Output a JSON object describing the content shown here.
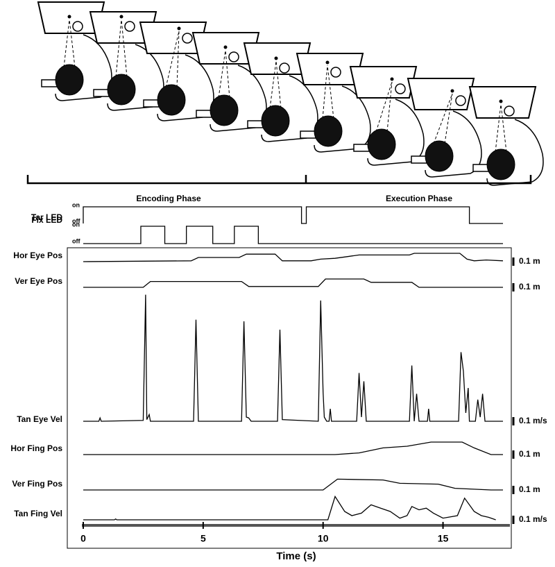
{
  "figure": {
    "phases": [
      {
        "label": "Encoding Phase"
      },
      {
        "label": "Execution Phase"
      }
    ],
    "leds": [
      {
        "name": "Fix LED",
        "on_label": "on",
        "off_label": "off",
        "x": [
          0,
          0,
          9.1,
          9.1,
          9.3,
          9.3,
          16.1,
          16.1,
          17.5
        ],
        "values": [
          0,
          1,
          1,
          0,
          0,
          1,
          1,
          0,
          0
        ]
      },
      {
        "name": "Tar LED",
        "on_label": "on",
        "off_label": "off",
        "x": [
          0,
          2.4,
          2.4,
          3.4,
          3.4,
          4.3,
          4.3,
          5.4,
          5.4,
          6.3,
          6.3,
          7.3,
          7.3,
          17.5
        ],
        "values": [
          0,
          0,
          1,
          1,
          0,
          0,
          1,
          1,
          0,
          0,
          1,
          1,
          0,
          0
        ]
      }
    ],
    "traces": [
      {
        "name": "Hor Eye Pos",
        "scale_bar": {
          "value": 0.1,
          "label": "0.1 m"
        },
        "x": [
          0,
          4.5,
          4.8,
          6.5,
          6.8,
          8.0,
          8.3,
          9.5,
          9.9,
          10.5,
          11.0,
          11.5,
          13.6,
          13.8,
          15.7,
          16.0,
          16.3,
          16.8,
          17.5
        ],
        "values": [
          0,
          0.01,
          0.05,
          0.05,
          0.09,
          0.09,
          0.01,
          0.01,
          0.03,
          0.04,
          0.06,
          0.08,
          0.08,
          0.1,
          0.1,
          0.03,
          0.01,
          0.02,
          0.01
        ]
      },
      {
        "name": "Ver Eye Pos",
        "scale_bar": {
          "value": 0.1,
          "label": "0.1 m"
        },
        "x": [
          0,
          2.5,
          2.8,
          6.6,
          6.9,
          9.8,
          10.1,
          11.7,
          12.0,
          13.7,
          14.0,
          17.5
        ],
        "values": [
          0,
          0,
          0.07,
          0.07,
          0.01,
          0.01,
          0.1,
          0.1,
          0.06,
          0.06,
          0,
          0
        ]
      },
      {
        "name": "Tan Eye Vel",
        "scale_bar": {
          "value": 0.1,
          "label": "0.1 m/s"
        },
        "x": [
          0,
          0.65,
          0.7,
          0.75,
          2.5,
          2.6,
          2.65,
          2.75,
          2.8,
          4.6,
          4.7,
          4.8,
          6.6,
          6.7,
          6.8,
          6.9,
          7.0,
          8.1,
          8.2,
          8.3,
          9.8,
          9.9,
          10.0,
          10.05,
          10.15,
          10.25,
          10.3,
          10.35,
          11.4,
          11.5,
          11.6,
          11.7,
          11.8,
          13.6,
          13.7,
          13.8,
          13.9,
          14.0,
          14.35,
          14.4,
          14.45,
          15.65,
          15.75,
          15.85,
          15.95,
          16.05,
          16.1,
          16.35,
          16.45,
          16.55,
          16.65,
          16.75,
          17.5
        ],
        "values": [
          0,
          0,
          0.04,
          0,
          0.01,
          1.52,
          0.02,
          0.08,
          0,
          0,
          1.22,
          0,
          0,
          1.2,
          0.05,
          0.04,
          0,
          0,
          1.1,
          0.02,
          0,
          1.45,
          0.35,
          0.05,
          0,
          0,
          0.15,
          0,
          0,
          0.58,
          0.05,
          0.48,
          0,
          0,
          0.67,
          0,
          0.33,
          0,
          0,
          0.15,
          0,
          0,
          0.83,
          0.6,
          0.1,
          0.4,
          0,
          0,
          0.26,
          0.05,
          0.33,
          0,
          0
        ]
      },
      {
        "name": "Hor Fing Pos",
        "scale_bar": {
          "value": 0.1,
          "label": "0.1 m"
        },
        "x": [
          0,
          10.5,
          11.5,
          12.5,
          13.5,
          14.5,
          15.8,
          16.3,
          17.0,
          17.5
        ],
        "values": [
          0,
          0,
          0.02,
          0.08,
          0.1,
          0.15,
          0.15,
          0.08,
          0,
          0
        ]
      },
      {
        "name": "Ver Fing Pos",
        "scale_bar": {
          "value": 0.1,
          "label": "0.1 m"
        },
        "x": [
          0,
          10.0,
          10.6,
          12.5,
          13.2,
          14.8,
          15.5,
          17.0,
          17.5
        ],
        "values": [
          0,
          0,
          0.13,
          0.12,
          0.08,
          0.07,
          0.02,
          0,
          0
        ]
      },
      {
        "name": "Tan Fing Vel",
        "scale_bar": {
          "value": 0.1,
          "label": "0.1 m/s"
        },
        "x": [
          0,
          1.3,
          1.35,
          1.4,
          10.2,
          10.5,
          10.9,
          11.2,
          11.6,
          12.0,
          12.4,
          12.8,
          13.2,
          13.5,
          13.7,
          14.0,
          14.3,
          14.6,
          15.0,
          15.6,
          15.9,
          16.3,
          16.6,
          16.9,
          17.2
        ],
        "values": [
          0,
          0,
          0.01,
          0,
          0,
          0.28,
          0.1,
          0.05,
          0.08,
          0.18,
          0.14,
          0.1,
          0.02,
          0.05,
          0.16,
          0.12,
          0.14,
          0.08,
          0.02,
          0.05,
          0.26,
          0.1,
          0.05,
          0.03,
          0
        ]
      }
    ],
    "time_axis": {
      "label": "Time (s)",
      "xlim": [
        0,
        17.5
      ],
      "xticks": [
        0,
        5,
        10,
        15
      ]
    }
  }
}
